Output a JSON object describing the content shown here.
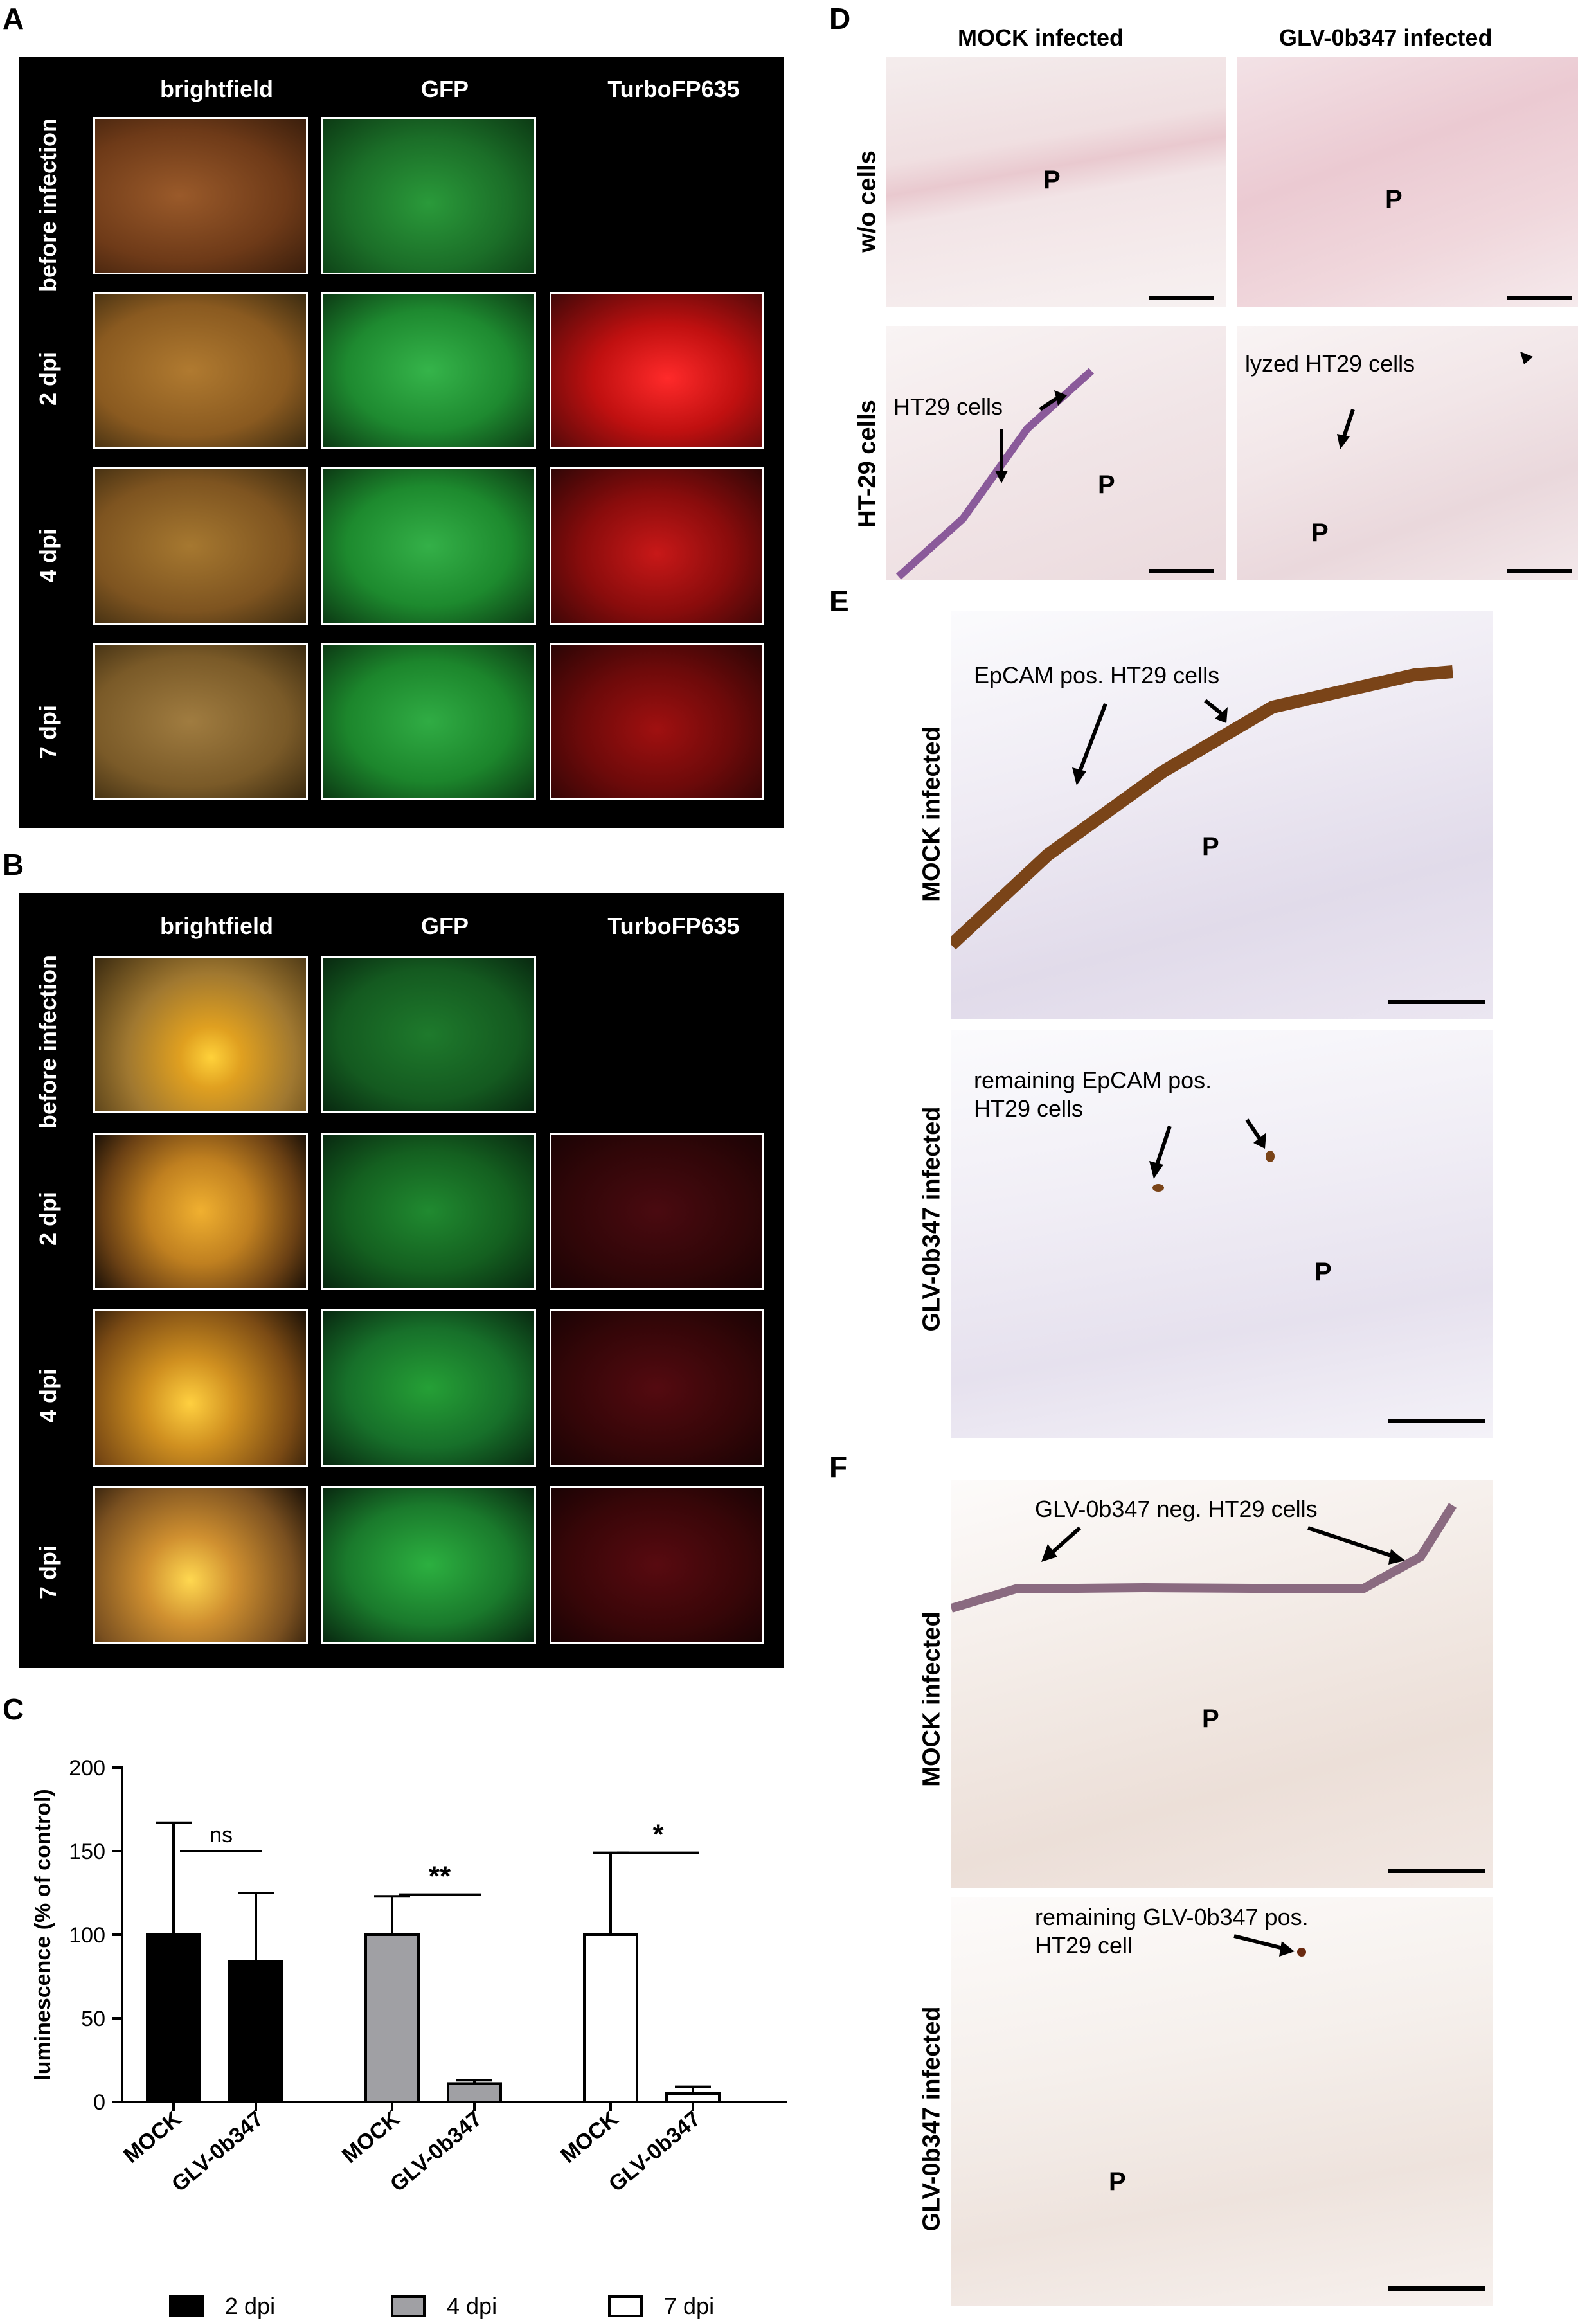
{
  "panels": {
    "a": {
      "label": "A",
      "cols": [
        "brightfield",
        "GFP",
        "TurboFP635"
      ],
      "rows": [
        "before infection",
        "2 dpi",
        "4 dpi",
        "7 dpi"
      ]
    },
    "b": {
      "label": "B",
      "cols": [
        "brightfield",
        "GFP",
        "TurboFP635"
      ],
      "rows": [
        "before infection",
        "2 dpi",
        "4 dpi",
        "7 dpi"
      ]
    },
    "c": {
      "label": "C"
    },
    "d": {
      "label": "D",
      "col_mock": "MOCK infected",
      "col_glv": "GLV-0b347 infected",
      "row_wo": "w/o cells",
      "row_ht": "HT-29 cells",
      "p": "P",
      "ann_ht29": "HT29 cells",
      "ann_lyzed": "lyzed HT29 cells"
    },
    "e": {
      "label": "E",
      "row_mock": "MOCK infected",
      "row_glv": "GLV-0b347 infected",
      "ann_mock": "EpCAM pos. HT29 cells",
      "ann_glv_line1": "remaining EpCAM pos.",
      "ann_glv_line2": "HT29 cells",
      "p": "P"
    },
    "f": {
      "label": "F",
      "row_mock": "MOCK infected",
      "row_glv": "GLV-0b347 infected",
      "ann_mock": "GLV-0b347 neg. HT29 cells",
      "ann_glv_line1": "remaining GLV-0b347 pos.",
      "ann_glv_line2": "HT29 cell",
      "p": "P"
    }
  },
  "chart_data": {
    "type": "bar",
    "ylabel": "luminescence (% of control)",
    "ylim": [
      0,
      200
    ],
    "yticks": [
      0,
      50,
      100,
      150,
      200
    ],
    "categories": [
      "MOCK",
      "GLV-0b347",
      "MOCK",
      "GLV-0b347",
      "MOCK",
      "GLV-0b347"
    ],
    "groups": [
      {
        "name": "2 dpi",
        "color": "#000000",
        "bars": [
          {
            "label": "MOCK",
            "value": 100,
            "error": 67
          },
          {
            "label": "GLV-0b347",
            "value": 84,
            "error": 41
          }
        ],
        "significance": "ns"
      },
      {
        "name": "4 dpi",
        "color": "#a0a0a4",
        "bars": [
          {
            "label": "MOCK",
            "value": 100,
            "error": 23
          },
          {
            "label": "GLV-0b347",
            "value": 11,
            "error": 2
          }
        ],
        "significance": "**"
      },
      {
        "name": "7 dpi",
        "color": "#ffffff",
        "bars": [
          {
            "label": "MOCK",
            "value": 100,
            "error": 49
          },
          {
            "label": "GLV-0b347",
            "value": 5,
            "error": 4
          }
        ],
        "significance": "*"
      }
    ],
    "legend": [
      "2 dpi",
      "4 dpi",
      "7 dpi"
    ],
    "legend_position": "bottom"
  }
}
